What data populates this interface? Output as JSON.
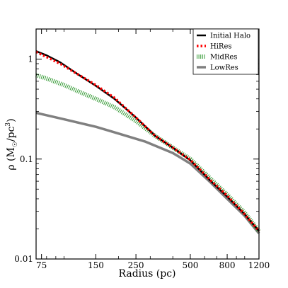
{
  "chart_data": {
    "type": "line",
    "xlabel": "Radius (pc)",
    "ylabel": "ρ (M☉/pc³)",
    "ylabel_parts": [
      "ρ (M",
      "☉",
      "/pc",
      "3",
      ")"
    ],
    "xscale": "log",
    "yscale": "log",
    "xlim": [
      70,
      1200
    ],
    "ylim": [
      0.01,
      2.0
    ],
    "xticks": [
      {
        "value": 75,
        "label": "75"
      },
      {
        "value": 150,
        "label": "150"
      },
      {
        "value": 250,
        "label": "250"
      },
      {
        "value": 500,
        "label": "500"
      },
      {
        "value": 800,
        "label": "800"
      },
      {
        "value": 1200,
        "label": "1200"
      }
    ],
    "yticks": [
      {
        "value": 0.01,
        "label": "0.01"
      },
      {
        "value": 0.1,
        "label": "0.1"
      },
      {
        "value": 1,
        "label": "1"
      }
    ],
    "legend_position": "top-right",
    "series": [
      {
        "name": "Initial Halo",
        "color": "#000000",
        "style": "solid",
        "x": [
          70,
          80,
          95,
          120,
          150,
          190,
          250,
          320,
          400,
          500,
          650,
          800,
          1000,
          1200
        ],
        "y": [
          1.2,
          1.09,
          0.93,
          0.7,
          0.54,
          0.4,
          0.26,
          0.17,
          0.13,
          0.097,
          0.06,
          0.042,
          0.028,
          0.019
        ]
      },
      {
        "name": "HiRes",
        "color": "#ff0000",
        "style": "dotted",
        "x": [
          70,
          80,
          95,
          120,
          150,
          190,
          250,
          320,
          400,
          500,
          650,
          800,
          1000,
          1200
        ],
        "y": [
          1.18,
          1.05,
          0.9,
          0.7,
          0.55,
          0.41,
          0.26,
          0.17,
          0.13,
          0.098,
          0.061,
          0.043,
          0.028,
          0.019
        ]
      },
      {
        "name": "MidRes",
        "color": "#339933",
        "style": "hatched",
        "x": [
          70,
          80,
          100,
          125,
          150,
          190,
          250,
          320,
          400,
          500,
          650,
          800,
          1000,
          1200
        ],
        "y": [
          0.69,
          0.64,
          0.55,
          0.46,
          0.4,
          0.33,
          0.24,
          0.17,
          0.13,
          0.1,
          0.063,
          0.044,
          0.029,
          0.019
        ]
      },
      {
        "name": "LowRes",
        "color": "#808080",
        "style": "solid",
        "x": [
          70,
          100,
          150,
          200,
          280,
          400,
          500,
          650,
          800,
          1000,
          1200
        ],
        "y": [
          0.29,
          0.25,
          0.21,
          0.18,
          0.15,
          0.115,
          0.09,
          0.058,
          0.04,
          0.027,
          0.018
        ]
      }
    ]
  }
}
